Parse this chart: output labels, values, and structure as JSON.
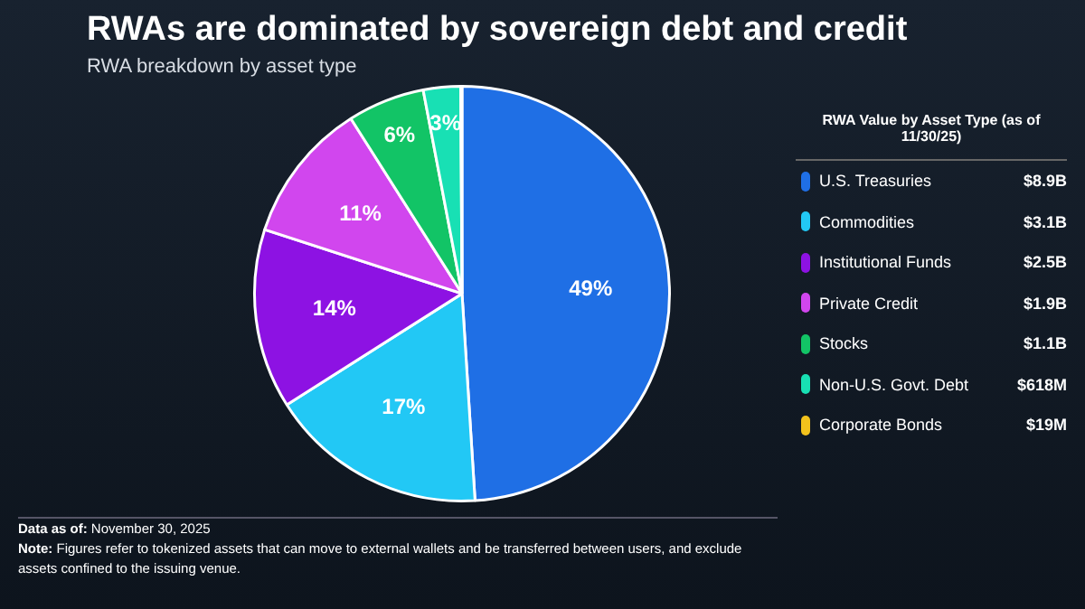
{
  "chart_data": {
    "type": "pie",
    "title": "RWAs are dominated by sovereign debt and credit",
    "subtitle": "RWA breakdown by asset type",
    "legend_title": "RWA Value by Asset Type (as of 11/30/25)",
    "legend": "right",
    "categories": [
      "U.S. Treasuries",
      "Commodities",
      "Institutional Funds",
      "Private Credit",
      "Stocks",
      "Non-U.S. Govt. Debt",
      "Corporate Bonds"
    ],
    "values": [
      49,
      17,
      14,
      11,
      6,
      2.9,
      0.1
    ],
    "value_labels": [
      "49%",
      "17%",
      "14%",
      "11%",
      "6%",
      "3%",
      null
    ],
    "colors": [
      "#1f6fe5",
      "#22c8f5",
      "#8d12e3",
      "#d146ee",
      "#12c466",
      "#18e0b4",
      "#f2c21c"
    ],
    "annotations": [
      {
        "text": "$8.9B",
        "x": "U.S. Treasuries"
      },
      {
        "text": "$3.1B",
        "x": "Commodities"
      },
      {
        "text": "$2.5B",
        "x": "Institutional Funds"
      },
      {
        "text": "$1.9B",
        "x": "Private Credit"
      },
      {
        "text": "$1.1B",
        "x": "Stocks"
      },
      {
        "text": "$618M",
        "x": "Non-U.S. Govt. Debt"
      },
      {
        "text": "$19M",
        "x": "Corporate Bonds"
      },
      "Data as of: November 30, 2025",
      "Note: Figures refer to tokenized assets that can move to external wallets and be transferred between users, and exclude assets confined to the issuing venue."
    ]
  }
}
